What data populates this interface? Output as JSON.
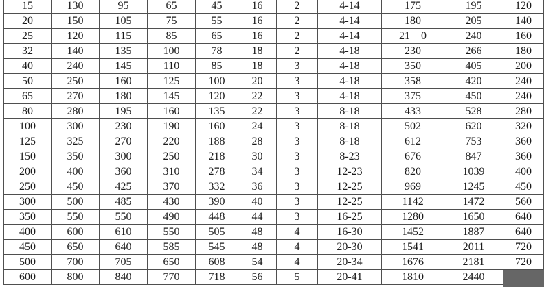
{
  "colors": {
    "background": "#ffffff",
    "border": "#4f4f4f",
    "text": "#1c1c1c",
    "filled_cell": "#666666"
  },
  "table": {
    "column_count": 11,
    "rows": [
      [
        "15",
        "130",
        "95",
        "65",
        "45",
        "16",
        "2",
        "4-14",
        "175",
        "195",
        "120"
      ],
      [
        "20",
        "150",
        "105",
        "75",
        "55",
        "16",
        "2",
        "4-14",
        "180",
        "205",
        "140"
      ],
      [
        "25",
        "120",
        "115",
        "85",
        "65",
        "16",
        "2",
        "4-14",
        "21 0",
        "240",
        "160"
      ],
      [
        "32",
        "140",
        "135",
        "100",
        "78",
        "18",
        "2",
        "4-18",
        "230",
        "266",
        "180"
      ],
      [
        "40",
        "240",
        "145",
        "110",
        "85",
        "18",
        "3",
        "4-18",
        "350",
        "405",
        "200"
      ],
      [
        "50",
        "250",
        "160",
        "125",
        "100",
        "20",
        "3",
        "4-18",
        "358",
        "420",
        "240"
      ],
      [
        "65",
        "270",
        "180",
        "145",
        "120",
        "22",
        "3",
        "4-18",
        "375",
        "450",
        "240"
      ],
      [
        "80",
        "280",
        "195",
        "160",
        "135",
        "22",
        "3",
        "8-18",
        "433",
        "528",
        "280"
      ],
      [
        "100",
        "300",
        "230",
        "190",
        "160",
        "24",
        "3",
        "8-18",
        "502",
        "620",
        "320"
      ],
      [
        "125",
        "325",
        "270",
        "220",
        "188",
        "28",
        "3",
        "8-18",
        "612",
        "753",
        "360"
      ],
      [
        "150",
        "350",
        "300",
        "250",
        "218",
        "30",
        "3",
        "8-23",
        "676",
        "847",
        "360"
      ],
      [
        "200",
        "400",
        "360",
        "310",
        "278",
        "34",
        "3",
        "12-23",
        "820",
        "1039",
        "400"
      ],
      [
        "250",
        "450",
        "425",
        "370",
        "332",
        "36",
        "3",
        "12-25",
        "969",
        "1245",
        "450"
      ],
      [
        "300",
        "500",
        "485",
        "430",
        "390",
        "40",
        "3",
        "12-25",
        "1142",
        "1472",
        "560"
      ],
      [
        "350",
        "550",
        "550",
        "490",
        "448",
        "44",
        "3",
        "16-25",
        "1280",
        "1650",
        "640"
      ],
      [
        "400",
        "600",
        "610",
        "550",
        "505",
        "48",
        "4",
        "16-30",
        "1452",
        "1887",
        "640"
      ],
      [
        "450",
        "650",
        "640",
        "585",
        "545",
        "48",
        "4",
        "20-30",
        "1541",
        "2011",
        "720"
      ],
      [
        "500",
        "700",
        "705",
        "650",
        "608",
        "54",
        "4",
        "20-34",
        "1676",
        "2181",
        "720"
      ],
      [
        "600",
        "800",
        "840",
        "770",
        "718",
        "56",
        "5",
        "20-41",
        "1810",
        "2440",
        ""
      ]
    ],
    "filled_cell": {
      "row_index": 18,
      "col_index": 10,
      "value": ""
    }
  }
}
